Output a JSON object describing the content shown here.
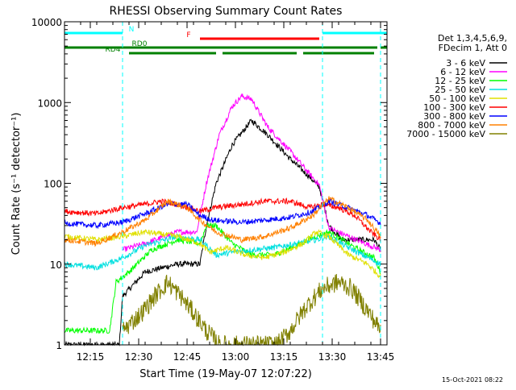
{
  "chart_data": {
    "type": "line",
    "title": "RHESSI Observing Summary Count Rates",
    "xlabel": "Start Time (19-May-07 12:07:22)",
    "ylabel": "Count Rate (s⁻¹ detector⁻¹)",
    "ylog": true,
    "ylim": [
      1,
      10000
    ],
    "xlim_minutes_after_start": [
      0,
      100
    ],
    "x_ticks": [
      "12:15",
      "12:30",
      "12:45",
      "13:00",
      "13:15",
      "13:30",
      "13:45"
    ],
    "y_ticks": [
      "1",
      "10",
      "100",
      "1000",
      "10000"
    ],
    "legend_title": [
      "Det 1,3,4,5,6,9,",
      "FDecim 1, Att 0"
    ],
    "legend_position": "right",
    "footer": "15-Oct-2021 08:22",
    "flags": [
      {
        "label": "N",
        "color": "#00ffff",
        "segments": [
          [
            0,
            18
          ],
          [
            80,
            100
          ]
        ]
      },
      {
        "label": "F",
        "color": "#ff0000",
        "segments": [
          [
            42,
            79
          ]
        ]
      },
      {
        "label": "RD0",
        "color": "#008000",
        "segments": [
          [
            0,
            97
          ],
          [
            98,
            100
          ]
        ]
      },
      {
        "label": "RD4",
        "color": "#008000",
        "segments": [
          [
            20,
            47
          ],
          [
            49,
            72
          ],
          [
            74,
            96
          ]
        ]
      }
    ],
    "vlines": [
      {
        "x": 18,
        "color": "#00ffff",
        "dashed": true
      },
      {
        "x": 80,
        "color": "#00ffff",
        "dashed": true
      },
      {
        "x": 98,
        "color": "#00ffff",
        "dashed": true
      }
    ],
    "series": [
      {
        "name": "3 - 6 keV",
        "color": "#000000",
        "points": [
          [
            0,
            1
          ],
          [
            17,
            1
          ],
          [
            18,
            4
          ],
          [
            25,
            8
          ],
          [
            35,
            10
          ],
          [
            42,
            10
          ],
          [
            44,
            30
          ],
          [
            47,
            100
          ],
          [
            52,
            300
          ],
          [
            58,
            600
          ],
          [
            63,
            400
          ],
          [
            70,
            200
          ],
          [
            76,
            120
          ],
          [
            79,
            90
          ],
          [
            82,
            30
          ],
          [
            86,
            20
          ],
          [
            90,
            20
          ],
          [
            96,
            20
          ],
          [
            98,
            15
          ]
        ]
      },
      {
        "name": "6 - 12 keV",
        "color": "#ff00ff",
        "points": [
          [
            18,
            15
          ],
          [
            25,
            18
          ],
          [
            35,
            25
          ],
          [
            41,
            25
          ],
          [
            44,
            100
          ],
          [
            48,
            400
          ],
          [
            52,
            900
          ],
          [
            55,
            1200
          ],
          [
            58,
            1100
          ],
          [
            63,
            500
          ],
          [
            70,
            250
          ],
          [
            76,
            130
          ],
          [
            79,
            95
          ],
          [
            82,
            28
          ],
          [
            88,
            22
          ],
          [
            98,
            15
          ]
        ]
      },
      {
        "name": "12 - 25 keV",
        "color": "#00ff00",
        "points": [
          [
            0,
            1.5
          ],
          [
            14,
            1.5
          ],
          [
            16,
            6
          ],
          [
            20,
            8
          ],
          [
            27,
            15
          ],
          [
            35,
            20
          ],
          [
            42,
            18
          ],
          [
            44,
            30
          ],
          [
            47,
            30
          ],
          [
            52,
            18
          ],
          [
            58,
            13
          ],
          [
            65,
            13
          ],
          [
            72,
            17
          ],
          [
            78,
            22
          ],
          [
            82,
            25
          ],
          [
            86,
            20
          ],
          [
            90,
            16
          ],
          [
            96,
            12
          ],
          [
            98,
            8
          ]
        ]
      },
      {
        "name": "25 - 50 keV",
        "color": "#00e0e0",
        "points": [
          [
            0,
            10
          ],
          [
            10,
            9
          ],
          [
            18,
            12
          ],
          [
            25,
            17
          ],
          [
            35,
            22
          ],
          [
            42,
            20
          ],
          [
            44,
            17
          ],
          [
            47,
            13
          ],
          [
            52,
            14
          ],
          [
            58,
            15
          ],
          [
            65,
            16
          ],
          [
            72,
            18
          ],
          [
            78,
            20
          ],
          [
            82,
            22
          ],
          [
            88,
            16
          ],
          [
            98,
            10
          ]
        ]
      },
      {
        "name": "50 - 100 keV",
        "color": "#e0e000",
        "points": [
          [
            0,
            22
          ],
          [
            10,
            20
          ],
          [
            18,
            22
          ],
          [
            25,
            25
          ],
          [
            35,
            22
          ],
          [
            42,
            18
          ],
          [
            45,
            14
          ],
          [
            50,
            16
          ],
          [
            56,
            13
          ],
          [
            62,
            12
          ],
          [
            68,
            14
          ],
          [
            74,
            18
          ],
          [
            78,
            25
          ],
          [
            82,
            22
          ],
          [
            88,
            13
          ],
          [
            94,
            10
          ],
          [
            98,
            7
          ]
        ]
      },
      {
        "name": "100 - 300 keV",
        "color": "#ff0000",
        "points": [
          [
            0,
            45
          ],
          [
            10,
            42
          ],
          [
            18,
            50
          ],
          [
            25,
            55
          ],
          [
            30,
            60
          ],
          [
            35,
            55
          ],
          [
            42,
            45
          ],
          [
            47,
            50
          ],
          [
            55,
            55
          ],
          [
            62,
            60
          ],
          [
            70,
            60
          ],
          [
            76,
            50
          ],
          [
            80,
            55
          ],
          [
            85,
            50
          ],
          [
            90,
            40
          ],
          [
            95,
            25
          ],
          [
            98,
            20
          ]
        ]
      },
      {
        "name": "300 - 800 keV",
        "color": "#0000ff",
        "points": [
          [
            0,
            32
          ],
          [
            10,
            30
          ],
          [
            18,
            33
          ],
          [
            25,
            42
          ],
          [
            32,
            55
          ],
          [
            38,
            55
          ],
          [
            42,
            40
          ],
          [
            46,
            35
          ],
          [
            55,
            33
          ],
          [
            62,
            35
          ],
          [
            70,
            38
          ],
          [
            77,
            45
          ],
          [
            82,
            60
          ],
          [
            88,
            50
          ],
          [
            94,
            40
          ],
          [
            98,
            32
          ]
        ]
      },
      {
        "name": "800 - 7000 keV",
        "color": "#ff8000",
        "points": [
          [
            0,
            20
          ],
          [
            10,
            18
          ],
          [
            18,
            25
          ],
          [
            25,
            35
          ],
          [
            32,
            60
          ],
          [
            38,
            50
          ],
          [
            42,
            35
          ],
          [
            47,
            25
          ],
          [
            55,
            20
          ],
          [
            62,
            22
          ],
          [
            70,
            28
          ],
          [
            77,
            40
          ],
          [
            82,
            65
          ],
          [
            88,
            50
          ],
          [
            94,
            35
          ],
          [
            98,
            22
          ]
        ]
      },
      {
        "name": "7000 - 15000 keV",
        "color": "#808000",
        "points": [
          [
            18,
            1.5
          ],
          [
            24,
            2.5
          ],
          [
            28,
            4
          ],
          [
            32,
            6
          ],
          [
            36,
            4
          ],
          [
            40,
            2.5
          ],
          [
            44,
            1.5
          ],
          [
            48,
            1
          ],
          [
            66,
            1
          ],
          [
            70,
            1.5
          ],
          [
            75,
            3
          ],
          [
            80,
            5
          ],
          [
            85,
            6
          ],
          [
            89,
            5
          ],
          [
            93,
            3
          ],
          [
            96,
            2
          ],
          [
            98,
            1.5
          ]
        ]
      }
    ]
  }
}
